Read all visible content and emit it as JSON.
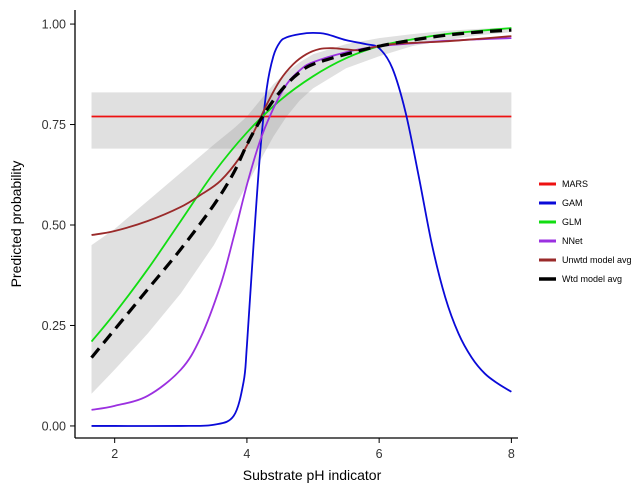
{
  "chart_data": {
    "type": "line",
    "title": "",
    "xlabel": "Substrate pH indicator",
    "ylabel": "Predicted probability",
    "xlim": [
      1.4,
      8.1
    ],
    "ylim": [
      -0.03,
      1.035
    ],
    "x_ticks": [
      2,
      4,
      6,
      8
    ],
    "x_tick_labels": [
      "2",
      "4",
      "6",
      "8"
    ],
    "y_ticks": [
      0,
      0.25,
      0.5,
      0.75,
      1
    ],
    "y_tick_labels": [
      "0.00",
      "0.25",
      "0.50",
      "0.75",
      "1.00"
    ],
    "grid": false,
    "legend_position": "right",
    "series": [
      {
        "name": "MARS",
        "color": "#ee1111",
        "dashed": false,
        "x": [
          1.65,
          8.0
        ],
        "y": [
          0.77,
          0.77
        ]
      },
      {
        "name": "GAM",
        "color": "#0a0ad8",
        "dashed": false,
        "x": [
          1.65,
          2.0,
          3.0,
          3.5,
          3.8,
          3.95,
          4.0,
          4.1,
          4.2,
          4.3,
          4.4,
          4.5,
          4.6,
          4.8,
          5.0,
          5.2,
          5.5,
          5.8,
          6.0,
          6.2,
          6.4,
          6.6,
          6.8,
          7.0,
          7.2,
          7.4,
          7.6,
          7.8,
          8.0
        ],
        "y": [
          0.0,
          0.0,
          0.0,
          0.003,
          0.025,
          0.11,
          0.2,
          0.45,
          0.68,
          0.84,
          0.92,
          0.955,
          0.967,
          0.975,
          0.978,
          0.975,
          0.96,
          0.95,
          0.94,
          0.89,
          0.78,
          0.62,
          0.45,
          0.32,
          0.23,
          0.17,
          0.13,
          0.105,
          0.085
        ]
      },
      {
        "name": "GLM",
        "color": "#11dd11",
        "dashed": false,
        "x": [
          1.65,
          2.0,
          2.5,
          3.0,
          3.5,
          4.0,
          4.5,
          5.0,
          5.5,
          6.0,
          6.5,
          7.0,
          7.5,
          8.0
        ],
        "y": [
          0.21,
          0.28,
          0.39,
          0.51,
          0.63,
          0.73,
          0.81,
          0.87,
          0.915,
          0.945,
          0.962,
          0.975,
          0.983,
          0.99
        ]
      },
      {
        "name": "NNet",
        "color": "#9b30e0",
        "dashed": false,
        "x": [
          1.65,
          2.0,
          2.5,
          3.0,
          3.3,
          3.6,
          3.8,
          4.0,
          4.2,
          4.4,
          4.6,
          4.8,
          5.0,
          5.5,
          6.0,
          6.5,
          7.0,
          7.5,
          8.0
        ],
        "y": [
          0.04,
          0.05,
          0.075,
          0.14,
          0.22,
          0.35,
          0.47,
          0.6,
          0.71,
          0.79,
          0.85,
          0.885,
          0.905,
          0.93,
          0.945,
          0.952,
          0.958,
          0.962,
          0.965
        ]
      },
      {
        "name": "Unwtd model avg",
        "color": "#9a2a2a",
        "dashed": false,
        "x": [
          1.65,
          2.0,
          2.5,
          3.0,
          3.3,
          3.6,
          3.9,
          4.1,
          4.3,
          4.5,
          4.7,
          4.9,
          5.1,
          5.3,
          5.5,
          5.7,
          5.9,
          6.0,
          6.2,
          6.5,
          7.0,
          7.5,
          8.0
        ],
        "y": [
          0.475,
          0.485,
          0.51,
          0.545,
          0.575,
          0.61,
          0.67,
          0.73,
          0.8,
          0.86,
          0.9,
          0.925,
          0.938,
          0.94,
          0.937,
          0.935,
          0.942,
          0.945,
          0.95,
          0.953,
          0.957,
          0.963,
          0.97
        ]
      },
      {
        "name": "Wtd model avg",
        "color": "#000000",
        "dashed": true,
        "x": [
          1.65,
          2.0,
          2.5,
          3.0,
          3.5,
          3.8,
          4.0,
          4.2,
          4.4,
          4.6,
          4.8,
          5.0,
          5.5,
          6.0,
          6.5,
          7.0,
          7.5,
          8.0
        ],
        "y": [
          0.17,
          0.24,
          0.34,
          0.44,
          0.55,
          0.63,
          0.7,
          0.76,
          0.81,
          0.85,
          0.88,
          0.9,
          0.925,
          0.945,
          0.96,
          0.972,
          0.98,
          0.985
        ]
      }
    ],
    "bands": [
      {
        "series": "MARS",
        "x": [
          1.65,
          8.0
        ],
        "lower": [
          0.69,
          0.69
        ],
        "upper": [
          0.83,
          0.83
        ]
      },
      {
        "series": "Wtd model avg",
        "x": [
          1.65,
          2.0,
          2.5,
          3.0,
          3.5,
          3.8,
          4.0,
          4.2,
          4.4,
          4.6,
          4.8,
          5.0,
          5.5,
          6.0,
          6.5,
          7.0,
          7.5,
          8.0
        ],
        "lower": [
          0.08,
          0.14,
          0.23,
          0.33,
          0.45,
          0.54,
          0.6,
          0.66,
          0.72,
          0.77,
          0.81,
          0.84,
          0.89,
          0.92,
          0.945,
          0.96,
          0.972,
          0.98
        ],
        "upper": [
          0.45,
          0.49,
          0.56,
          0.63,
          0.7,
          0.74,
          0.77,
          0.81,
          0.85,
          0.88,
          0.905,
          0.925,
          0.95,
          0.965,
          0.975,
          0.983,
          0.988,
          0.992
        ]
      }
    ]
  }
}
